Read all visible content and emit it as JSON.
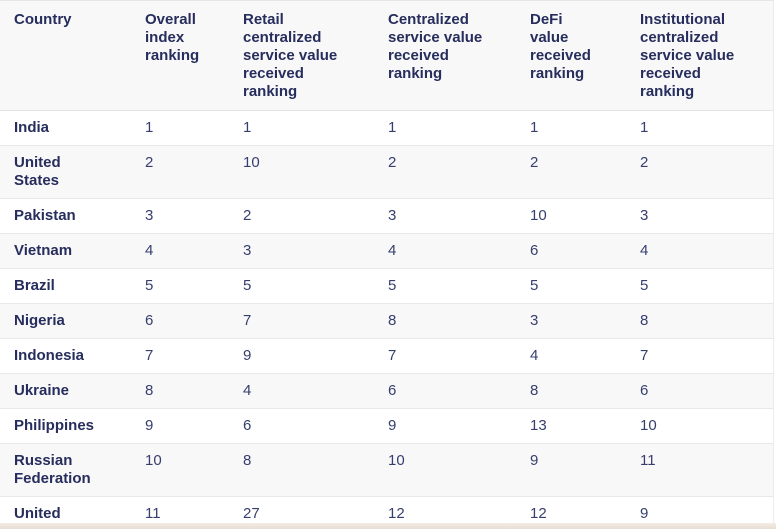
{
  "table": {
    "columns": [
      {
        "label": "Country"
      },
      {
        "label": "Overall\nindex\nranking"
      },
      {
        "label": "Retail\ncentralized\nservice value\nreceived\nranking"
      },
      {
        "label": "Centralized\nservice value\nreceived\nranking"
      },
      {
        "label": "DeFi\nvalue\nreceived\nranking"
      },
      {
        "label": "Institutional\ncentralized\nservice value\nreceived\nranking"
      }
    ],
    "rows": [
      {
        "country": "India",
        "values": [
          "1",
          "1",
          "1",
          "1",
          "1"
        ]
      },
      {
        "country": "United\nStates",
        "values": [
          "2",
          "10",
          "2",
          "2",
          "2"
        ]
      },
      {
        "country": "Pakistan",
        "values": [
          "3",
          "2",
          "3",
          "10",
          "3"
        ]
      },
      {
        "country": "Vietnam",
        "values": [
          "4",
          "3",
          "4",
          "6",
          "4"
        ]
      },
      {
        "country": "Brazil",
        "values": [
          "5",
          "5",
          "5",
          "5",
          "5"
        ]
      },
      {
        "country": "Nigeria",
        "values": [
          "6",
          "7",
          "8",
          "3",
          "8"
        ]
      },
      {
        "country": "Indonesia",
        "values": [
          "7",
          "9",
          "7",
          "4",
          "7"
        ]
      },
      {
        "country": "Ukraine",
        "values": [
          "8",
          "4",
          "6",
          "8",
          "6"
        ]
      },
      {
        "country": "Philippines",
        "values": [
          "9",
          "6",
          "9",
          "13",
          "10"
        ]
      },
      {
        "country": "Russian\nFederation",
        "values": [
          "10",
          "8",
          "10",
          "9",
          "11"
        ]
      },
      {
        "country": "United",
        "values": [
          "11",
          "27",
          "12",
          "12",
          "9"
        ]
      }
    ]
  },
  "colors": {
    "heading_text": "#272d5c",
    "value_text": "#363e6e",
    "stripe_bg": "#f8f8f9",
    "row_border": "#e8e8ea",
    "bottom_strip": "#e8ded2"
  }
}
